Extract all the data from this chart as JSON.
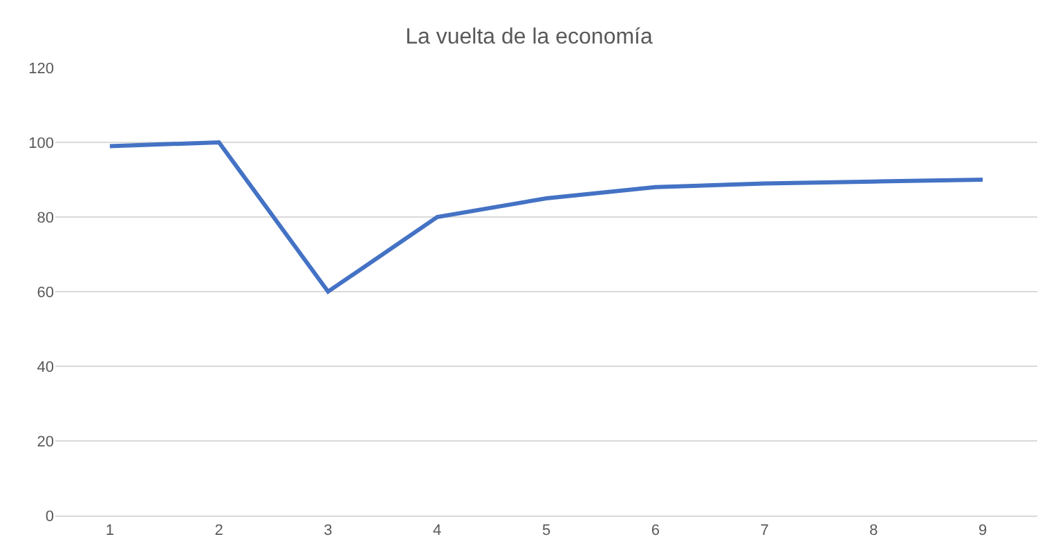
{
  "chart_data": {
    "type": "line",
    "title": "La vuelta de la economía",
    "categories": [
      "1",
      "2",
      "3",
      "4",
      "5",
      "6",
      "7",
      "8",
      "9"
    ],
    "series": [
      {
        "color": "#4472c4",
        "values": [
          99,
          100,
          60,
          80,
          85,
          88,
          89,
          89.5,
          90
        ]
      }
    ],
    "ylim": [
      0,
      120
    ],
    "yticks": [
      0,
      20,
      40,
      60,
      80,
      100,
      120
    ],
    "grid": "y",
    "marker": "none",
    "line_style": "solid"
  }
}
